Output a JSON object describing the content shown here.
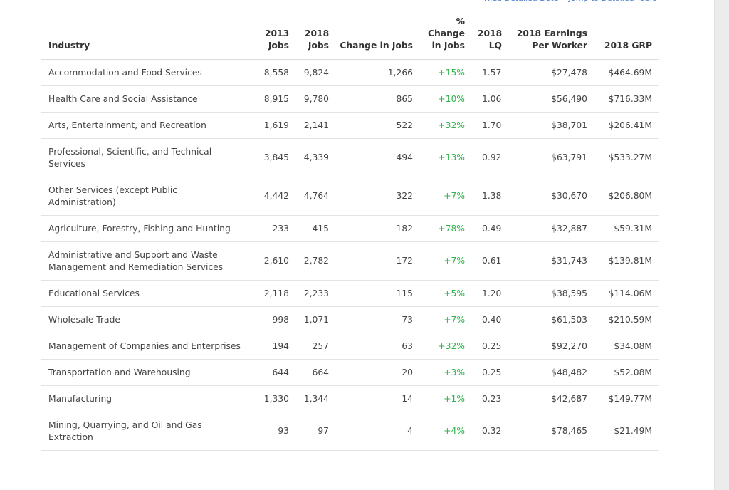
{
  "links": [
    "Hide Detailed Data",
    "Jump to Detailed Table"
  ],
  "table": {
    "headers": [
      "Industry",
      "2013 Jobs",
      "2018 Jobs",
      "Change in Jobs",
      "% Change in Jobs",
      "2018 LQ",
      "2018 Earnings Per Worker",
      "2018 GRP"
    ],
    "rows": [
      [
        "Accommodation and Food Services",
        "8,558",
        "9,824",
        "1,266",
        "+15%",
        "1.57",
        "$27,478",
        "$464.69M"
      ],
      [
        "Health Care and Social Assistance",
        "8,915",
        "9,780",
        "865",
        "+10%",
        "1.06",
        "$56,490",
        "$716.33M"
      ],
      [
        "Arts, Entertainment, and Recreation",
        "1,619",
        "2,141",
        "522",
        "+32%",
        "1.70",
        "$38,701",
        "$206.41M"
      ],
      [
        "Professional, Scientific, and Technical Services",
        "3,845",
        "4,339",
        "494",
        "+13%",
        "0.92",
        "$63,791",
        "$533.27M"
      ],
      [
        "Other Services (except Public Administration)",
        "4,442",
        "4,764",
        "322",
        "+7%",
        "1.38",
        "$30,670",
        "$206.80M"
      ],
      [
        "Agriculture, Forestry, Fishing and Hunting",
        "233",
        "415",
        "182",
        "+78%",
        "0.49",
        "$32,887",
        "$59.31M"
      ],
      [
        "Administrative and Support and Waste Management and Remediation Services",
        "2,610",
        "2,782",
        "172",
        "+7%",
        "0.61",
        "$31,743",
        "$139.81M"
      ],
      [
        "Educational Services",
        "2,118",
        "2,233",
        "115",
        "+5%",
        "1.20",
        "$38,595",
        "$114.06M"
      ],
      [
        "Wholesale Trade",
        "998",
        "1,071",
        "73",
        "+7%",
        "0.40",
        "$61,503",
        "$210.59M"
      ],
      [
        "Management of Companies and Enterprises",
        "194",
        "257",
        "63",
        "+32%",
        "0.25",
        "$92,270",
        "$34.08M"
      ],
      [
        "Transportation and Warehousing",
        "644",
        "664",
        "20",
        "+3%",
        "0.25",
        "$48,482",
        "$52.08M"
      ],
      [
        "Manufacturing",
        "1,330",
        "1,344",
        "14",
        "+1%",
        "0.23",
        "$42,687",
        "$149.77M"
      ],
      [
        "Mining, Quarrying, and Oil and Gas Extraction",
        "93",
        "97",
        "4",
        "+4%",
        "0.32",
        "$78,465",
        "$21.49M"
      ]
    ]
  }
}
